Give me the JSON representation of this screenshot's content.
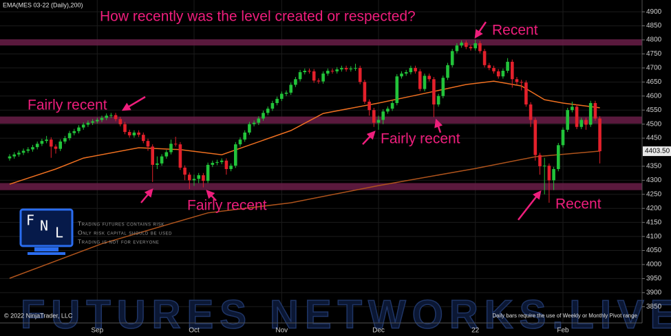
{
  "chart_data": {
    "type": "candlestick",
    "title": "EMA(MES 03-22 (Daily),200)",
    "annotations": [
      "How recently was the level created or respected?",
      "Recent",
      "Fairly recent",
      "Fairly recent",
      "Fairly recent",
      "Recent"
    ],
    "disclaimer": [
      "Trading futures contains risk",
      "Only risk capital should be used",
      "Trading is not for everyone"
    ],
    "logo_letters": [
      "F",
      "N",
      "L"
    ],
    "watermark": "FUTURES NETWORKS.LIVE",
    "copyright": "© 2022 NinjaTrader, LLC",
    "footnote": "Daily bars require the use of Weekly or Monthly Pivot range",
    "categories": [
      null,
      null,
      null,
      null,
      null,
      null,
      null,
      null,
      null,
      null,
      null,
      null,
      null,
      null,
      null,
      null,
      null,
      null,
      null,
      "Sep",
      null,
      null,
      null,
      null,
      null,
      null,
      null,
      null,
      null,
      null,
      null,
      null,
      null,
      null,
      null,
      null,
      null,
      null,
      null,
      null,
      "Oct",
      null,
      null,
      null,
      null,
      null,
      null,
      null,
      null,
      null,
      null,
      null,
      null,
      null,
      null,
      null,
      null,
      null,
      null,
      "Nov",
      null,
      null,
      null,
      null,
      null,
      null,
      null,
      null,
      null,
      null,
      null,
      null,
      null,
      null,
      null,
      null,
      null,
      null,
      null,
      null,
      "Dec",
      null,
      null,
      null,
      null,
      null,
      null,
      null,
      null,
      null,
      null,
      null,
      null,
      null,
      null,
      null,
      null,
      null,
      null,
      null,
      null,
      "22",
      null,
      null,
      null,
      null,
      null,
      null,
      null,
      null,
      null,
      null,
      null,
      null,
      null,
      null,
      null,
      null,
      null,
      null,
      "Feb",
      null,
      null,
      null,
      null,
      null,
      null,
      null,
      null
    ],
    "open": [
      4378,
      4385,
      4392,
      4398,
      4405,
      4410,
      4418,
      4430,
      4440,
      4445,
      4420,
      4412,
      4438,
      4450,
      4468,
      4475,
      4488,
      4498,
      4505,
      4510,
      4515,
      4522,
      4530,
      4532,
      4518,
      4500,
      4472,
      4460,
      4470,
      4462,
      4440,
      4420,
      4355,
      4360,
      4385,
      4400,
      4430,
      4428,
      4345,
      4320,
      4300,
      4305,
      4318,
      4298,
      4355,
      4362,
      4365,
      4370,
      4340,
      4352,
      4428,
      4445,
      4470,
      4500,
      4505,
      4520,
      4540,
      4555,
      4575,
      4590,
      4608,
      4612,
      4640,
      4660,
      4685,
      4690,
      4688,
      4655,
      4652,
      4680,
      4690,
      4688,
      4695,
      4700,
      4695,
      4698,
      4700,
      4650,
      4580,
      4550,
      4505,
      4515,
      4545,
      4555,
      4575,
      4670,
      4680,
      4685,
      4700,
      4688,
      4625,
      4672,
      4660,
      4570,
      4600,
      4665,
      4710,
      4760,
      4780,
      4790,
      4775,
      4770,
      4788,
      4760,
      4710,
      4700,
      4688,
      4670,
      4690,
      4722,
      4660,
      4650,
      4648,
      4570,
      4515,
      4390,
      4350,
      4352,
      4300,
      4340,
      4425,
      4480,
      4550,
      4562,
      4490,
      4515,
      4498,
      4575,
      4520
    ],
    "high": [
      4393,
      4400,
      4406,
      4413,
      4418,
      4426,
      4438,
      4448,
      4458,
      4453,
      4428,
      4446,
      4458,
      4476,
      4483,
      4496,
      4506,
      4513,
      4518,
      4523,
      4530,
      4538,
      4540,
      4540,
      4526,
      4508,
      4480,
      4478,
      4478,
      4470,
      4448,
      4428,
      4385,
      4393,
      4408,
      4445,
      4455,
      4436,
      4353,
      4328,
      4320,
      4326,
      4326,
      4363,
      4370,
      4373,
      4378,
      4378,
      4360,
      4436,
      4453,
      4478,
      4508,
      4513,
      4528,
      4548,
      4563,
      4583,
      4598,
      4616,
      4620,
      4648,
      4668,
      4693,
      4698,
      4698,
      4696,
      4663,
      4688,
      4698,
      4698,
      4703,
      4708,
      4708,
      4706,
      4715,
      4708,
      4658,
      4588,
      4558,
      4530,
      4553,
      4563,
      4583,
      4678,
      4688,
      4693,
      4708,
      4708,
      4696,
      4680,
      4680,
      4668,
      4608,
      4673,
      4718,
      4768,
      4788,
      4798,
      4798,
      4783,
      4800,
      4796,
      4768,
      4718,
      4708,
      4696,
      4698,
      4735,
      4730,
      4668,
      4658,
      4656,
      4578,
      4523,
      4398,
      4380,
      4360,
      4348,
      4433,
      4488,
      4558,
      4580,
      4570,
      4523,
      4523,
      4583,
      4583,
      4528
    ],
    "low": [
      4370,
      4377,
      4384,
      4390,
      4397,
      4402,
      4410,
      4422,
      4432,
      4380,
      4395,
      4404,
      4430,
      4442,
      4460,
      4467,
      4480,
      4490,
      4497,
      4502,
      4507,
      4514,
      4522,
      4510,
      4492,
      4464,
      4452,
      4452,
      4454,
      4432,
      4405,
      4294,
      4340,
      4352,
      4377,
      4392,
      4420,
      4337,
      4300,
      4269,
      4280,
      4290,
      4275,
      4290,
      4347,
      4354,
      4357,
      4320,
      4332,
      4344,
      4420,
      4437,
      4462,
      4492,
      4497,
      4512,
      4532,
      4547,
      4567,
      4582,
      4600,
      4604,
      4632,
      4652,
      4677,
      4680,
      4647,
      4644,
      4644,
      4672,
      4680,
      4680,
      4687,
      4687,
      4687,
      4690,
      4642,
      4572,
      4530,
      4490,
      4480,
      4500,
      4537,
      4547,
      4567,
      4662,
      4672,
      4677,
      4680,
      4617,
      4617,
      4652,
      4525,
      4562,
      4592,
      4657,
      4702,
      4752,
      4772,
      4767,
      4762,
      4762,
      4752,
      4702,
      4692,
      4680,
      4662,
      4662,
      4682,
      4630,
      4640,
      4620,
      4562,
      4490,
      4370,
      4320,
      4250,
      4220,
      4265,
      4332,
      4417,
      4472,
      4542,
      4482,
      4482,
      4480,
      4490,
      4512,
      4360
    ],
    "close": [
      4385,
      4392,
      4398,
      4405,
      4410,
      4418,
      4430,
      4440,
      4445,
      4420,
      4412,
      4438,
      4450,
      4468,
      4475,
      4488,
      4498,
      4505,
      4510,
      4515,
      4522,
      4530,
      4532,
      4518,
      4500,
      4472,
      4460,
      4470,
      4462,
      4440,
      4420,
      4355,
      4360,
      4385,
      4400,
      4430,
      4428,
      4345,
      4320,
      4300,
      4305,
      4318,
      4298,
      4355,
      4362,
      4365,
      4370,
      4340,
      4352,
      4428,
      4445,
      4470,
      4500,
      4505,
      4520,
      4540,
      4555,
      4575,
      4590,
      4608,
      4612,
      4640,
      4660,
      4685,
      4690,
      4688,
      4655,
      4652,
      4680,
      4690,
      4688,
      4695,
      4700,
      4695,
      4698,
      4700,
      4650,
      4580,
      4550,
      4505,
      4515,
      4545,
      4555,
      4575,
      4670,
      4680,
      4685,
      4700,
      4688,
      4625,
      4672,
      4660,
      4570,
      4600,
      4665,
      4710,
      4760,
      4780,
      4790,
      4775,
      4770,
      4788,
      4760,
      4710,
      4700,
      4688,
      4670,
      4690,
      4722,
      4660,
      4650,
      4648,
      4570,
      4515,
      4390,
      4350,
      4352,
      4300,
      4340,
      4425,
      4480,
      4550,
      4562,
      4490,
      4515,
      4498,
      4575,
      4520,
      4403.5
    ],
    "up_color": "#22c33a",
    "down_color": "#e3202b",
    "lines": [
      {
        "color": "#f07020",
        "x": [
          0,
          10,
          16,
          28,
          37,
          46,
          61,
          68,
          80,
          87,
          99,
          105,
          111,
          116,
          120,
          128
        ],
        "values": [
          4286,
          4340,
          4379,
          4416,
          4409,
          4391,
          4477,
          4538,
          4575,
          4599,
          4641,
          4653,
          4636,
          4587,
          4575,
          4558
        ]
      },
      {
        "color": "#b0541c",
        "x": [
          0,
          20,
          43,
          61,
          80,
          101,
          114,
          128
        ],
        "values": [
          3951,
          4074,
          4184,
          4220,
          4281,
          4342,
          4384,
          4404
        ]
      }
    ],
    "zones": [
      {
        "from": 4780,
        "to": 4802
      },
      {
        "from": 4502,
        "to": 4527
      },
      {
        "from": 4265,
        "to": 4290
      }
    ],
    "zone_color": "#6a1d48",
    "last_price": {
      "value": 4403.5,
      "label": "4403.50"
    },
    "ylim": [
      3792,
      4942
    ],
    "yticks": [
      3850,
      3900,
      3950,
      4000,
      4050,
      4100,
      4150,
      4200,
      4250,
      4300,
      4350,
      4450,
      4500,
      4550,
      4600,
      4650,
      4700,
      4750,
      4800,
      4850,
      4900
    ],
    "grid": true
  }
}
